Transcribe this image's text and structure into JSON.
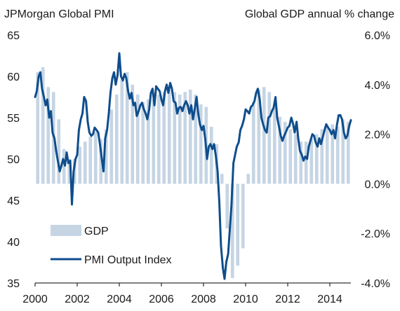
{
  "chart_data": {
    "type": "bar+line",
    "title_left": "JPMorgan Global PMI",
    "title_right": "Global GDP annual  % change",
    "x_ticks": [
      "2000",
      "2002",
      "2004",
      "2006",
      "2008",
      "2010",
      "2012",
      "2014"
    ],
    "left_axis": {
      "ticks": [
        "65",
        "60",
        "55",
        "50",
        "45",
        "40",
        "35"
      ],
      "range": [
        35,
        65
      ]
    },
    "right_axis": {
      "ticks": [
        "6.0%",
        "4.0%",
        "2.0%",
        "0.0%",
        "-2.0%",
        "-4.0%"
      ],
      "range": [
        -4,
        6
      ]
    },
    "colors": {
      "bars": "#c5d5e4",
      "line": "#0f4d8c"
    },
    "grid": false,
    "legend": {
      "position": "lower-left"
    },
    "series": [
      {
        "name": "GDP",
        "kind": "bar",
        "axis": "right",
        "x": [
          2000.0,
          2000.25,
          2000.5,
          2000.75,
          2001.0,
          2001.25,
          2001.5,
          2001.75,
          2002.0,
          2002.25,
          2002.5,
          2002.75,
          2003.0,
          2003.25,
          2003.5,
          2003.75,
          2004.0,
          2004.25,
          2004.5,
          2004.75,
          2005.0,
          2005.25,
          2005.5,
          2005.75,
          2006.0,
          2006.25,
          2006.5,
          2006.75,
          2007.0,
          2007.25,
          2007.5,
          2007.75,
          2008.0,
          2008.25,
          2008.5,
          2008.75,
          2009.0,
          2009.25,
          2009.5,
          2009.75,
          2010.0,
          2010.25,
          2010.5,
          2010.75,
          2011.0,
          2011.25,
          2011.5,
          2011.75,
          2012.0,
          2012.25,
          2012.5,
          2012.75,
          2013.0,
          2013.25,
          2013.5,
          2013.75,
          2014.0,
          2014.25,
          2014.5,
          2014.75
        ],
        "values": [
          4.5,
          4.7,
          3.9,
          3.7,
          2.6,
          1.4,
          1.0,
          1.0,
          1.5,
          1.7,
          1.9,
          2.1,
          1.8,
          2.2,
          3.0,
          3.6,
          4.2,
          4.5,
          4.0,
          3.6,
          3.3,
          3.4,
          3.4,
          3.6,
          3.7,
          3.8,
          3.7,
          3.6,
          3.7,
          3.8,
          3.6,
          3.2,
          3.1,
          2.3,
          1.6,
          0.4,
          -1.8,
          -3.8,
          -3.3,
          -2.6,
          0.4,
          3.3,
          3.8,
          3.9,
          3.7,
          3.2,
          2.7,
          2.5,
          2.2,
          2.0,
          1.7,
          1.7,
          1.8,
          2.0,
          2.2,
          2.3,
          2.4,
          2.3,
          2.6,
          2.5
        ]
      },
      {
        "name": "PMI Output Index",
        "kind": "line",
        "axis": "left",
        "x": [
          2000.0,
          2000.08,
          2000.17,
          2000.25,
          2000.33,
          2000.42,
          2000.5,
          2000.58,
          2000.67,
          2000.75,
          2000.83,
          2000.92,
          2001.0,
          2001.08,
          2001.17,
          2001.25,
          2001.33,
          2001.42,
          2001.5,
          2001.58,
          2001.67,
          2001.75,
          2001.83,
          2001.92,
          2002.0,
          2002.08,
          2002.17,
          2002.25,
          2002.33,
          2002.42,
          2002.5,
          2002.58,
          2002.67,
          2002.75,
          2002.83,
          2002.92,
          2003.0,
          2003.08,
          2003.17,
          2003.25,
          2003.33,
          2003.42,
          2003.5,
          2003.58,
          2003.67,
          2003.75,
          2003.83,
          2003.92,
          2004.0,
          2004.08,
          2004.17,
          2004.25,
          2004.33,
          2004.42,
          2004.5,
          2004.58,
          2004.67,
          2004.75,
          2004.83,
          2004.92,
          2005.0,
          2005.08,
          2005.17,
          2005.25,
          2005.33,
          2005.42,
          2005.5,
          2005.58,
          2005.67,
          2005.75,
          2005.83,
          2005.92,
          2006.0,
          2006.08,
          2006.17,
          2006.25,
          2006.33,
          2006.42,
          2006.5,
          2006.58,
          2006.67,
          2006.75,
          2006.83,
          2006.92,
          2007.0,
          2007.08,
          2007.17,
          2007.25,
          2007.33,
          2007.42,
          2007.5,
          2007.58,
          2007.67,
          2007.75,
          2007.83,
          2007.92,
          2008.0,
          2008.08,
          2008.17,
          2008.25,
          2008.33,
          2008.42,
          2008.5,
          2008.58,
          2008.67,
          2008.75,
          2008.83,
          2008.92,
          2009.0,
          2009.08,
          2009.17,
          2009.25,
          2009.33,
          2009.42,
          2009.5,
          2009.58,
          2009.67,
          2009.75,
          2009.83,
          2009.92,
          2010.0,
          2010.08,
          2010.17,
          2010.25,
          2010.33,
          2010.42,
          2010.5,
          2010.58,
          2010.67,
          2010.75,
          2010.83,
          2010.92,
          2011.0,
          2011.08,
          2011.17,
          2011.25,
          2011.33,
          2011.42,
          2011.5,
          2011.58,
          2011.67,
          2011.75,
          2011.83,
          2011.92,
          2012.0,
          2012.08,
          2012.17,
          2012.25,
          2012.33,
          2012.42,
          2012.5,
          2012.58,
          2012.67,
          2012.75,
          2012.83,
          2012.92,
          2013.0,
          2013.08,
          2013.17,
          2013.25,
          2013.33,
          2013.42,
          2013.5,
          2013.58,
          2013.67,
          2013.75,
          2013.83,
          2013.92,
          2014.0,
          2014.08,
          2014.17,
          2014.25,
          2014.33,
          2014.42,
          2014.5,
          2014.58,
          2014.67,
          2014.75,
          2014.83,
          2014.92,
          2015.0
        ],
        "values": [
          57.5,
          58.2,
          60.0,
          60.5,
          58.5,
          57.5,
          56.5,
          57.2,
          55.0,
          55.8,
          53.2,
          52.5,
          51.0,
          49.8,
          48.5,
          49.2,
          50.0,
          49.2,
          50.8,
          49.5,
          49.8,
          44.5,
          48.5,
          50.0,
          50.5,
          53.5,
          54.8,
          55.5,
          57.5,
          57.0,
          54.5,
          53.2,
          52.8,
          53.0,
          53.8,
          53.5,
          53.2,
          51.8,
          50.0,
          48.5,
          52.5,
          53.5,
          55.5,
          58.0,
          59.8,
          60.5,
          59.0,
          60.2,
          62.8,
          60.0,
          59.5,
          60.3,
          59.8,
          58.2,
          57.3,
          58.0,
          56.5,
          56.8,
          55.2,
          55.8,
          56.5,
          56.8,
          56.0,
          55.5,
          54.8,
          56.0,
          58.0,
          58.5,
          56.5,
          58.8,
          58.5,
          58.2,
          57.2,
          56.5,
          58.2,
          59.0,
          58.0,
          59.2,
          58.5,
          57.0,
          56.8,
          55.5,
          56.2,
          56.3,
          55.8,
          56.5,
          57.0,
          56.5,
          55.5,
          56.5,
          54.8,
          56.0,
          57.5,
          55.5,
          54.2,
          53.5,
          54.0,
          52.5,
          50.0,
          51.5,
          51.8,
          51.2,
          51.8,
          50.5,
          48.5,
          44.8,
          39.5,
          36.8,
          35.5,
          37.5,
          38.5,
          41.5,
          44.5,
          49.5,
          50.5,
          51.5,
          52.0,
          53.5,
          54.0,
          54.8,
          56.0,
          55.8,
          55.5,
          56.3,
          56.5,
          57.0,
          58.0,
          58.5,
          57.2,
          55.0,
          54.2,
          53.5,
          53.2,
          55.0,
          55.2,
          55.8,
          56.2,
          57.5,
          55.0,
          54.0,
          52.8,
          52.2,
          52.8,
          53.3,
          53.8,
          54.0,
          55.0,
          54.3,
          53.2,
          54.5,
          52.5,
          51.0,
          50.5,
          49.8,
          50.3,
          50.0,
          51.5,
          52.2,
          53.0,
          52.8,
          52.0,
          51.5,
          52.5,
          51.8,
          52.7,
          53.5,
          54.2,
          53.8,
          53.5,
          53.0,
          53.5,
          52.5,
          54.0,
          55.3,
          55.3,
          54.8,
          53.2,
          52.5,
          52.8,
          54.0,
          54.7
        ]
      }
    ]
  }
}
